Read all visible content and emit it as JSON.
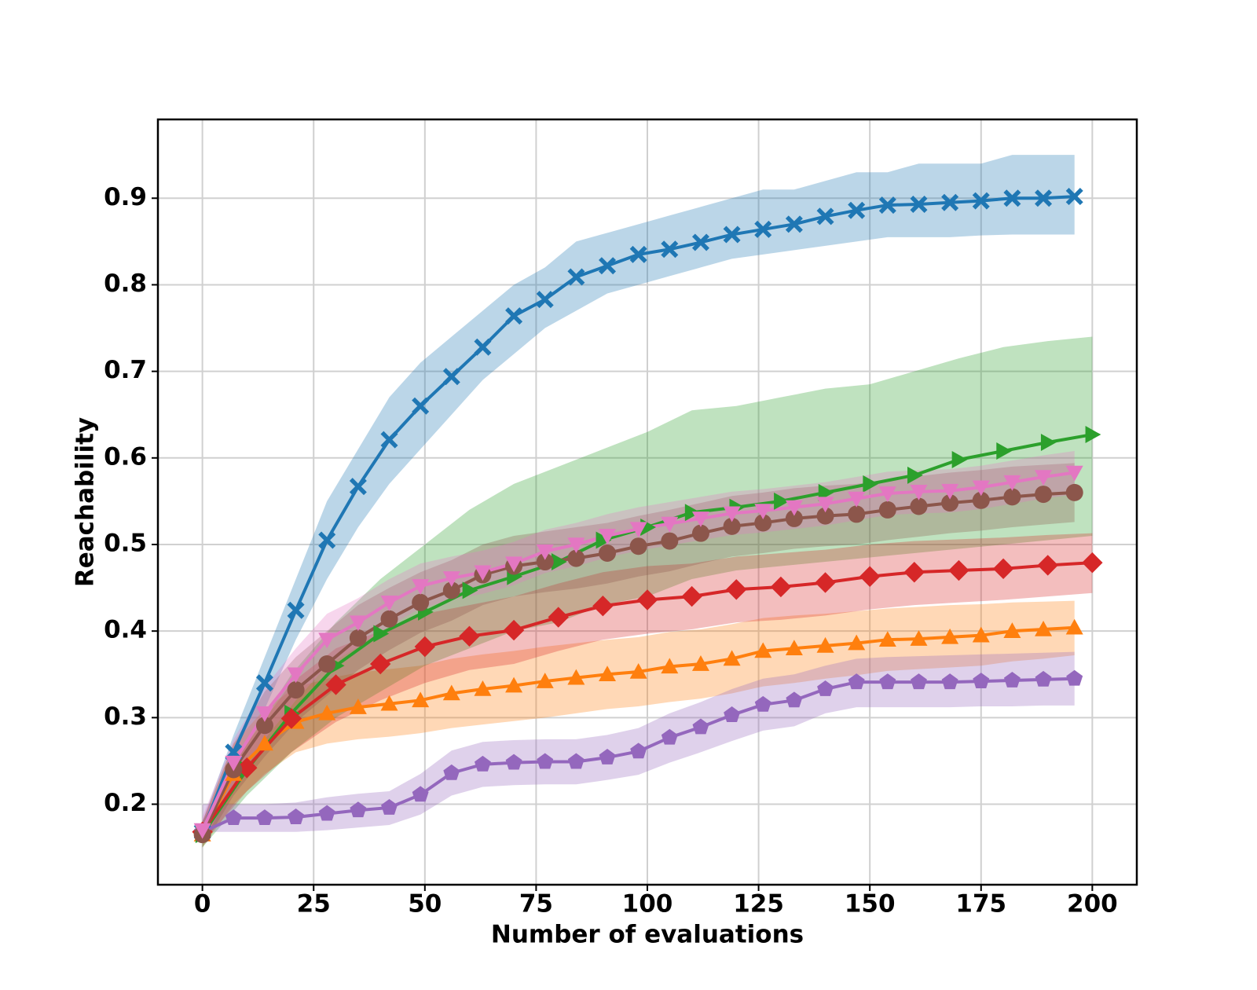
{
  "chart_data": {
    "type": "line",
    "xlabel": "Number of evaluations",
    "ylabel": "Reachability",
    "xlim": [
      -10,
      210
    ],
    "ylim": [
      0.107,
      0.991
    ],
    "xticks": [
      0,
      25,
      50,
      75,
      100,
      125,
      150,
      175,
      200
    ],
    "yticks": [
      0.2,
      0.3,
      0.4,
      0.5,
      0.6,
      0.7,
      0.8,
      0.9
    ],
    "grid": true,
    "series": [
      {
        "color": "#1f77b4",
        "marker": "X",
        "x": [
          0,
          7,
          14,
          21,
          28,
          35,
          42,
          49,
          56,
          63,
          70,
          77,
          84,
          91,
          98,
          105,
          112,
          119,
          126,
          133,
          140,
          147,
          154,
          161,
          168,
          175,
          182,
          189,
          196
        ],
        "values": [
          0.168,
          0.26,
          0.34,
          0.424,
          0.505,
          0.567,
          0.621,
          0.66,
          0.694,
          0.728,
          0.764,
          0.783,
          0.809,
          0.822,
          0.835,
          0.841,
          0.849,
          0.858,
          0.864,
          0.87,
          0.879,
          0.886,
          0.892,
          0.893,
          0.895,
          0.897,
          0.9,
          0.9,
          0.902
        ],
        "upper": [
          0.18,
          0.28,
          0.37,
          0.46,
          0.55,
          0.61,
          0.67,
          0.71,
          0.74,
          0.77,
          0.8,
          0.82,
          0.85,
          0.86,
          0.87,
          0.88,
          0.89,
          0.9,
          0.91,
          0.91,
          0.92,
          0.93,
          0.93,
          0.94,
          0.94,
          0.94,
          0.95,
          0.95,
          0.95
        ],
        "lower": [
          0.155,
          0.24,
          0.31,
          0.39,
          0.46,
          0.52,
          0.57,
          0.61,
          0.65,
          0.69,
          0.72,
          0.75,
          0.77,
          0.79,
          0.8,
          0.81,
          0.82,
          0.83,
          0.835,
          0.84,
          0.845,
          0.85,
          0.855,
          0.855,
          0.855,
          0.857,
          0.858,
          0.858,
          0.858
        ]
      },
      {
        "color": "#ff7f0e",
        "marker": "^",
        "x": [
          0,
          7,
          14,
          21,
          28,
          35,
          42,
          49,
          56,
          63,
          70,
          77,
          84,
          91,
          98,
          105,
          112,
          119,
          126,
          133,
          140,
          147,
          154,
          161,
          168,
          175,
          182,
          189,
          196
        ],
        "values": [
          0.165,
          0.235,
          0.27,
          0.295,
          0.305,
          0.312,
          0.316,
          0.32,
          0.328,
          0.333,
          0.337,
          0.342,
          0.346,
          0.35,
          0.353,
          0.359,
          0.362,
          0.368,
          0.377,
          0.38,
          0.383,
          0.386,
          0.39,
          0.391,
          0.393,
          0.395,
          0.4,
          0.402,
          0.404
        ],
        "upper": [
          0.18,
          0.27,
          0.31,
          0.335,
          0.345,
          0.352,
          0.356,
          0.36,
          0.368,
          0.373,
          0.377,
          0.382,
          0.386,
          0.39,
          0.393,
          0.399,
          0.402,
          0.408,
          0.415,
          0.418,
          0.42,
          0.423,
          0.426,
          0.428,
          0.43,
          0.431,
          0.433,
          0.434,
          0.435
        ],
        "lower": [
          0.15,
          0.2,
          0.235,
          0.26,
          0.27,
          0.275,
          0.278,
          0.282,
          0.288,
          0.292,
          0.296,
          0.3,
          0.305,
          0.31,
          0.313,
          0.318,
          0.322,
          0.328,
          0.336,
          0.34,
          0.345,
          0.349,
          0.354,
          0.356,
          0.358,
          0.36,
          0.365,
          0.368,
          0.372
        ]
      },
      {
        "color": "#2ca02c",
        "marker": ">",
        "x": [
          0,
          10,
          20,
          30,
          40,
          50,
          60,
          70,
          80,
          90,
          100,
          110,
          120,
          130,
          140,
          150,
          160,
          170,
          180,
          190,
          200
        ],
        "values": [
          0.165,
          0.24,
          0.305,
          0.36,
          0.397,
          0.422,
          0.447,
          0.463,
          0.48,
          0.505,
          0.52,
          0.537,
          0.543,
          0.55,
          0.56,
          0.57,
          0.58,
          0.598,
          0.608,
          0.618,
          0.627
        ],
        "upper": [
          0.18,
          0.27,
          0.35,
          0.41,
          0.46,
          0.5,
          0.54,
          0.57,
          0.59,
          0.61,
          0.63,
          0.655,
          0.66,
          0.67,
          0.68,
          0.685,
          0.7,
          0.715,
          0.728,
          0.735,
          0.74
        ],
        "lower": [
          0.15,
          0.21,
          0.26,
          0.3,
          0.33,
          0.36,
          0.38,
          0.4,
          0.41,
          0.43,
          0.44,
          0.46,
          0.47,
          0.475,
          0.48,
          0.485,
          0.49,
          0.495,
          0.5,
          0.505,
          0.51
        ]
      },
      {
        "color": "#d62728",
        "marker": "D",
        "x": [
          0,
          10,
          20,
          30,
          40,
          50,
          60,
          70,
          80,
          90,
          100,
          110,
          120,
          130,
          140,
          150,
          160,
          170,
          180,
          190,
          200
        ],
        "values": [
          0.168,
          0.242,
          0.299,
          0.338,
          0.362,
          0.382,
          0.394,
          0.401,
          0.416,
          0.429,
          0.436,
          0.44,
          0.448,
          0.451,
          0.456,
          0.463,
          0.468,
          0.47,
          0.472,
          0.476,
          0.479
        ],
        "upper": [
          0.18,
          0.27,
          0.34,
          0.38,
          0.4,
          0.42,
          0.43,
          0.44,
          0.455,
          0.468,
          0.475,
          0.478,
          0.486,
          0.49,
          0.494,
          0.5,
          0.504,
          0.506,
          0.508,
          0.511,
          0.513
        ],
        "lower": [
          0.155,
          0.215,
          0.26,
          0.295,
          0.32,
          0.34,
          0.355,
          0.362,
          0.377,
          0.39,
          0.397,
          0.402,
          0.41,
          0.413,
          0.418,
          0.425,
          0.43,
          0.433,
          0.436,
          0.44,
          0.444
        ]
      },
      {
        "color": "#9467bd",
        "marker": "p",
        "x": [
          0,
          7,
          14,
          21,
          28,
          35,
          42,
          49,
          56,
          63,
          70,
          77,
          84,
          91,
          98,
          105,
          112,
          119,
          126,
          133,
          140,
          147,
          154,
          161,
          168,
          175,
          182,
          189,
          196
        ],
        "values": [
          0.168,
          0.184,
          0.184,
          0.185,
          0.189,
          0.193,
          0.196,
          0.211,
          0.236,
          0.246,
          0.248,
          0.249,
          0.249,
          0.254,
          0.261,
          0.277,
          0.289,
          0.303,
          0.315,
          0.32,
          0.333,
          0.341,
          0.341,
          0.341,
          0.341,
          0.342,
          0.343,
          0.344,
          0.345
        ],
        "upper": [
          0.2,
          0.2,
          0.2,
          0.202,
          0.208,
          0.212,
          0.215,
          0.235,
          0.262,
          0.272,
          0.274,
          0.275,
          0.275,
          0.28,
          0.288,
          0.305,
          0.318,
          0.333,
          0.345,
          0.35,
          0.36,
          0.368,
          0.37,
          0.371,
          0.372,
          0.373,
          0.374,
          0.375,
          0.376
        ],
        "lower": [
          0.168,
          0.168,
          0.168,
          0.168,
          0.17,
          0.173,
          0.176,
          0.188,
          0.21,
          0.22,
          0.222,
          0.223,
          0.223,
          0.228,
          0.234,
          0.248,
          0.26,
          0.273,
          0.285,
          0.29,
          0.305,
          0.312,
          0.312,
          0.312,
          0.312,
          0.313,
          0.313,
          0.314,
          0.314
        ]
      },
      {
        "color": "#8c564b",
        "marker": "o",
        "x": [
          0,
          7,
          14,
          21,
          28,
          35,
          42,
          49,
          56,
          63,
          70,
          77,
          84,
          91,
          98,
          105,
          112,
          119,
          126,
          133,
          140,
          147,
          154,
          161,
          168,
          175,
          182,
          189,
          196
        ],
        "values": [
          0.165,
          0.24,
          0.291,
          0.332,
          0.362,
          0.392,
          0.414,
          0.433,
          0.447,
          0.465,
          0.475,
          0.48,
          0.484,
          0.49,
          0.498,
          0.504,
          0.513,
          0.521,
          0.525,
          0.53,
          0.533,
          0.535,
          0.54,
          0.544,
          0.548,
          0.551,
          0.555,
          0.558,
          0.56
        ],
        "upper": [
          0.18,
          0.27,
          0.33,
          0.37,
          0.4,
          0.43,
          0.45,
          0.468,
          0.482,
          0.5,
          0.51,
          0.515,
          0.52,
          0.525,
          0.533,
          0.54,
          0.548,
          0.556,
          0.56,
          0.565,
          0.568,
          0.57,
          0.575,
          0.579,
          0.583,
          0.586,
          0.59,
          0.592,
          0.594
        ],
        "lower": [
          0.15,
          0.21,
          0.255,
          0.295,
          0.325,
          0.355,
          0.378,
          0.398,
          0.412,
          0.43,
          0.44,
          0.445,
          0.449,
          0.455,
          0.463,
          0.469,
          0.478,
          0.486,
          0.49,
          0.495,
          0.498,
          0.5,
          0.505,
          0.509,
          0.513,
          0.516,
          0.52,
          0.523,
          0.526
        ]
      },
      {
        "color": "#e377c2",
        "marker": "v",
        "x": [
          0,
          7,
          14,
          21,
          28,
          35,
          42,
          49,
          56,
          63,
          70,
          77,
          84,
          91,
          98,
          105,
          112,
          119,
          126,
          133,
          140,
          147,
          154,
          161,
          168,
          175,
          182,
          189,
          196
        ],
        "values": [
          0.17,
          0.248,
          0.305,
          0.35,
          0.39,
          0.41,
          0.433,
          0.452,
          0.461,
          0.468,
          0.478,
          0.492,
          0.5,
          0.51,
          0.518,
          0.524,
          0.53,
          0.536,
          0.539,
          0.543,
          0.547,
          0.553,
          0.559,
          0.561,
          0.562,
          0.566,
          0.572,
          0.578,
          0.583
        ],
        "upper": [
          0.185,
          0.275,
          0.335,
          0.38,
          0.42,
          0.438,
          0.46,
          0.478,
          0.486,
          0.493,
          0.503,
          0.517,
          0.525,
          0.535,
          0.543,
          0.549,
          0.555,
          0.561,
          0.564,
          0.568,
          0.572,
          0.578,
          0.584,
          0.586,
          0.587,
          0.591,
          0.597,
          0.603,
          0.608
        ],
        "lower": [
          0.155,
          0.22,
          0.275,
          0.32,
          0.36,
          0.382,
          0.406,
          0.426,
          0.436,
          0.443,
          0.453,
          0.467,
          0.475,
          0.485,
          0.493,
          0.499,
          0.505,
          0.511,
          0.514,
          0.518,
          0.522,
          0.528,
          0.534,
          0.536,
          0.537,
          0.541,
          0.547,
          0.553,
          0.558
        ]
      }
    ]
  }
}
